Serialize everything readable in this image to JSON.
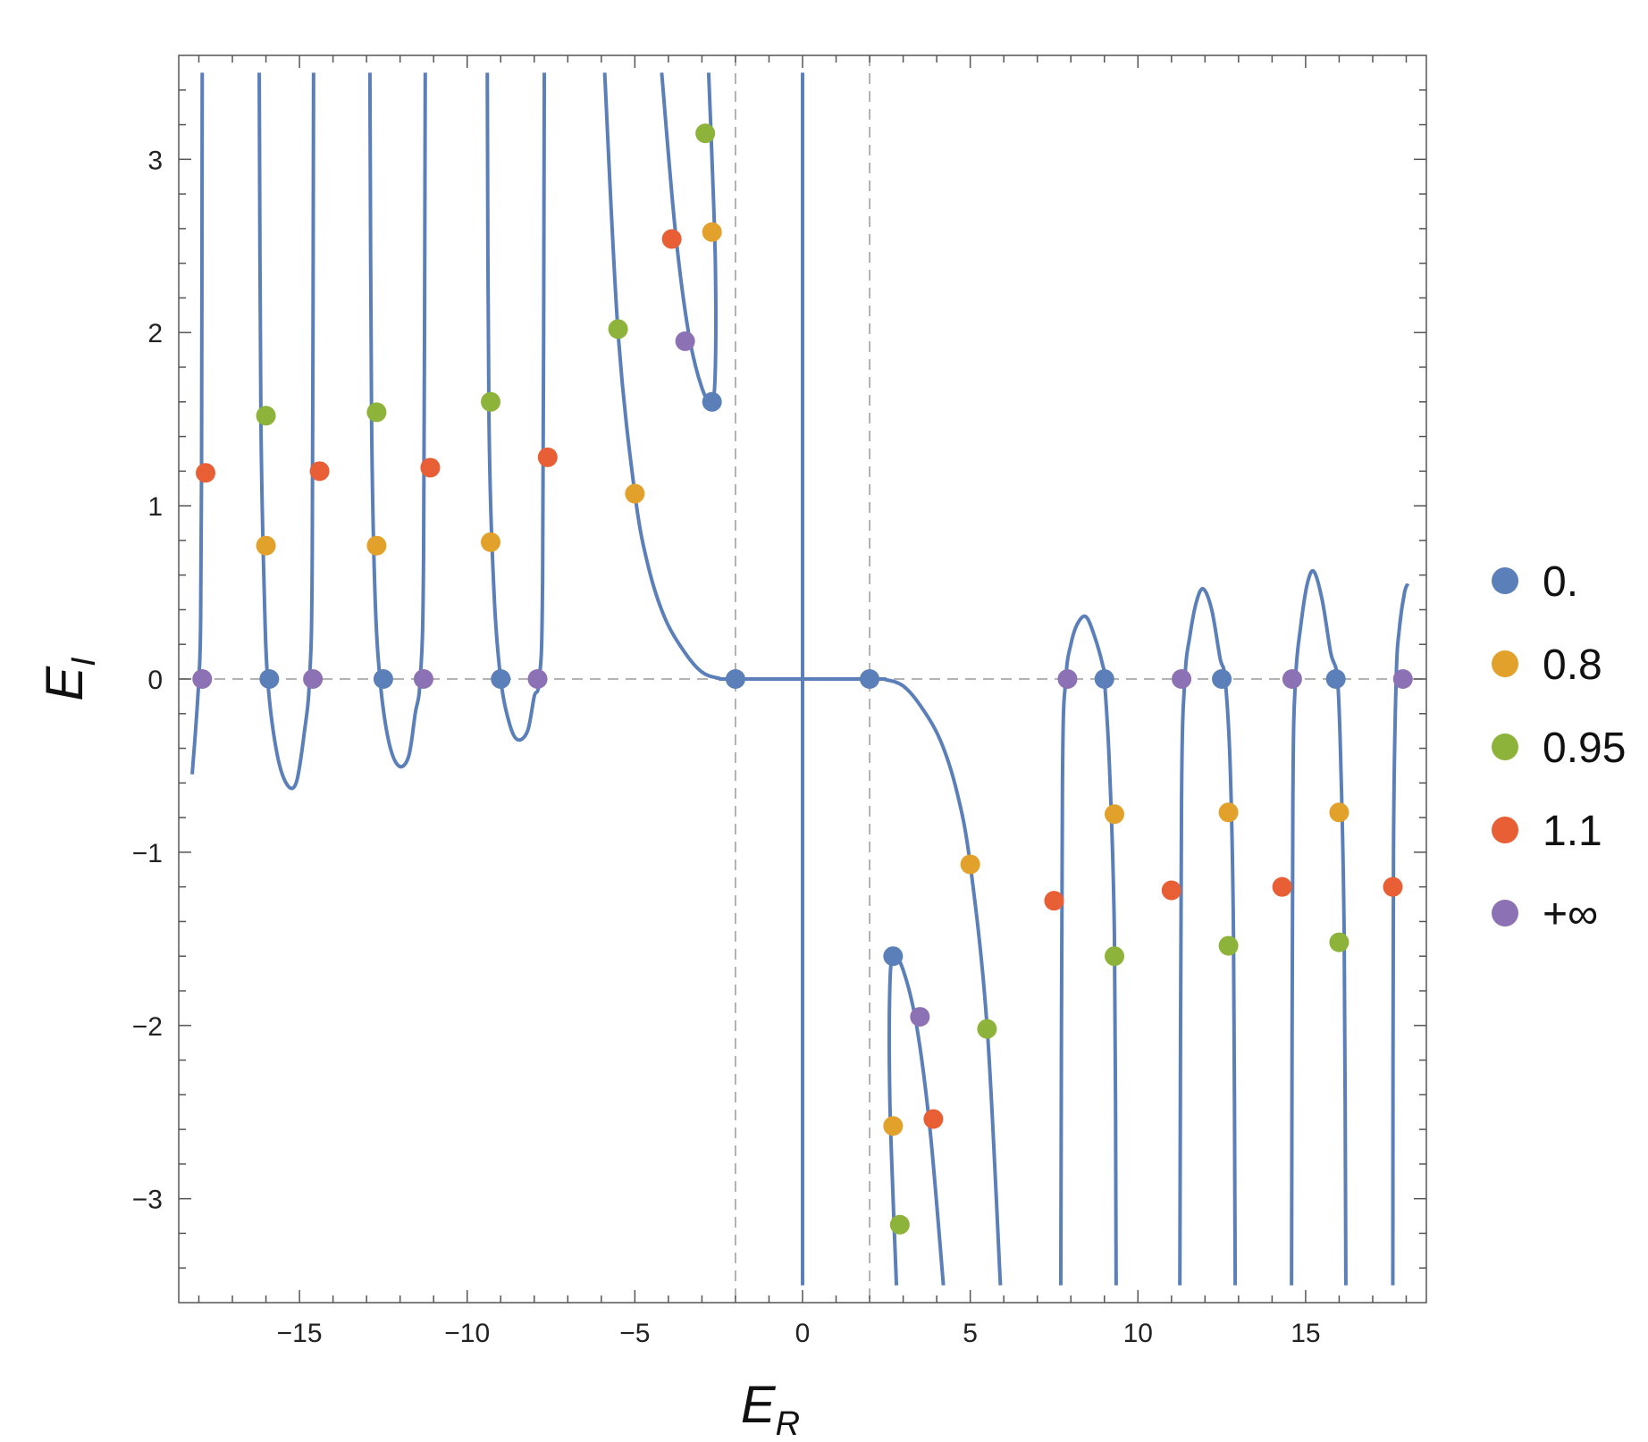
{
  "chart_data": {
    "type": "scatter",
    "xlabel": {
      "main": "E",
      "sub": "R"
    },
    "ylabel": {
      "main": "E",
      "sub": "I"
    },
    "xlim": [
      -18.6,
      18.6
    ],
    "ylim": [
      -3.6,
      3.6
    ],
    "xticks": [
      -15,
      -10,
      -5,
      0,
      5,
      10,
      15
    ],
    "xtick_labels": [
      "−15",
      "−10",
      "−5",
      "0",
      "5",
      "10",
      "15"
    ],
    "yticks": [
      -3,
      -2,
      -1,
      0,
      1,
      2,
      3
    ],
    "ytick_labels": [
      "−3",
      "−2",
      "−1",
      "0",
      "1",
      "2",
      "3"
    ],
    "reference_lines": {
      "vertical": [
        -2,
        2
      ],
      "horizontal": [
        0
      ],
      "style": "dashed"
    },
    "curve_color": "#5B7FB8",
    "curves": [
      [
        [
          -17.9,
          3.5
        ],
        [
          -17.92,
          1.2
        ],
        [
          -17.95,
          0.3
        ],
        [
          -18.0,
          0
        ],
        [
          -18.1,
          -0.3
        ],
        [
          -18.2,
          -0.55
        ]
      ],
      [
        [
          -16.2,
          3.5
        ],
        [
          -16.15,
          1.5
        ],
        [
          -16.05,
          0.5
        ],
        [
          -15.95,
          0
        ],
        [
          -15.7,
          -0.4
        ],
        [
          -15.4,
          -0.6
        ],
        [
          -15.1,
          -0.6
        ],
        [
          -14.85,
          -0.3
        ],
        [
          -14.7,
          0
        ],
        [
          -14.62,
          0.7
        ],
        [
          -14.58,
          3.5
        ]
      ],
      [
        [
          -12.9,
          3.5
        ],
        [
          -12.85,
          1.5
        ],
        [
          -12.75,
          0.5
        ],
        [
          -12.6,
          0
        ],
        [
          -12.35,
          -0.35
        ],
        [
          -12.05,
          -0.5
        ],
        [
          -11.75,
          -0.45
        ],
        [
          -11.55,
          -0.2
        ],
        [
          -11.4,
          0
        ],
        [
          -11.3,
          0.7
        ],
        [
          -11.25,
          3.5
        ]
      ],
      [
        [
          -9.4,
          3.5
        ],
        [
          -9.35,
          1.5
        ],
        [
          -9.2,
          0.5
        ],
        [
          -9.0,
          0
        ],
        [
          -8.75,
          -0.25
        ],
        [
          -8.5,
          -0.35
        ],
        [
          -8.2,
          -0.3
        ],
        [
          -8.0,
          -0.1
        ],
        [
          -7.85,
          0
        ],
        [
          -7.75,
          0.6
        ],
        [
          -7.7,
          3.5
        ]
      ],
      [
        [
          -5.9,
          3.5
        ],
        [
          -5.5,
          2.0
        ],
        [
          -5.0,
          1.07
        ],
        [
          -4.6,
          0.65
        ],
        [
          -4.1,
          0.35
        ],
        [
          -3.5,
          0.15
        ],
        [
          -3.0,
          0.04
        ],
        [
          -2.5,
          0.005
        ],
        [
          -2.0,
          0
        ],
        [
          2.0,
          0
        ],
        [
          2.5,
          -0.005
        ],
        [
          3.0,
          -0.04
        ],
        [
          3.5,
          -0.15
        ],
        [
          4.1,
          -0.35
        ],
        [
          4.6,
          -0.65
        ],
        [
          5.0,
          -1.07
        ],
        [
          5.5,
          -2.0
        ],
        [
          5.9,
          -3.5
        ]
      ],
      [
        [
          -4.2,
          3.5
        ],
        [
          -3.8,
          2.6
        ],
        [
          -3.4,
          2.0
        ],
        [
          -3.0,
          1.68
        ],
        [
          -2.7,
          1.6
        ],
        [
          -2.6,
          1.8
        ],
        [
          -2.6,
          2.4
        ],
        [
          -2.7,
          3.0
        ],
        [
          -2.8,
          3.5
        ]
      ],
      [
        [
          4.2,
          -3.5
        ],
        [
          3.8,
          -2.6
        ],
        [
          3.4,
          -2.0
        ],
        [
          3.0,
          -1.68
        ],
        [
          2.7,
          -1.6
        ],
        [
          2.6,
          -1.8
        ],
        [
          2.6,
          -2.4
        ],
        [
          2.7,
          -3.0
        ],
        [
          2.8,
          -3.5
        ]
      ],
      [
        [
          0,
          3.5
        ],
        [
          0,
          -3.5
        ]
      ],
      [
        [
          7.7,
          -3.5
        ],
        [
          7.75,
          -0.6
        ],
        [
          7.85,
          0
        ],
        [
          8.0,
          0.2
        ],
        [
          8.2,
          0.32
        ],
        [
          8.45,
          0.36
        ],
        [
          8.7,
          0.25
        ],
        [
          8.95,
          0.08
        ],
        [
          9.0,
          0
        ],
        [
          9.15,
          -0.5
        ],
        [
          9.3,
          -1.5
        ],
        [
          9.35,
          -3.5
        ]
      ],
      [
        [
          11.25,
          -3.5
        ],
        [
          11.3,
          -0.7
        ],
        [
          11.4,
          0
        ],
        [
          11.55,
          0.25
        ],
        [
          11.75,
          0.45
        ],
        [
          11.95,
          0.52
        ],
        [
          12.2,
          0.4
        ],
        [
          12.45,
          0.12
        ],
        [
          12.6,
          0
        ],
        [
          12.75,
          -0.5
        ],
        [
          12.85,
          -1.5
        ],
        [
          12.9,
          -3.5
        ]
      ],
      [
        [
          14.58,
          -3.5
        ],
        [
          14.62,
          -0.7
        ],
        [
          14.7,
          0
        ],
        [
          14.85,
          0.3
        ],
        [
          15.05,
          0.55
        ],
        [
          15.25,
          0.62
        ],
        [
          15.5,
          0.45
        ],
        [
          15.75,
          0.15
        ],
        [
          15.95,
          0
        ],
        [
          16.05,
          -0.5
        ],
        [
          16.15,
          -1.5
        ],
        [
          16.2,
          -3.5
        ]
      ],
      [
        [
          17.6,
          -3.5
        ],
        [
          17.62,
          -1.0
        ],
        [
          17.7,
          0
        ],
        [
          17.8,
          0.3
        ],
        [
          17.95,
          0.5
        ],
        [
          18.05,
          0.55
        ]
      ]
    ],
    "series": [
      {
        "name": "0.",
        "color": "#5B7FB8",
        "points": [
          [
            -15.9,
            0
          ],
          [
            -12.5,
            0
          ],
          [
            -9.0,
            0
          ],
          [
            -2.0,
            0
          ],
          [
            2.0,
            0
          ],
          [
            9.0,
            0
          ],
          [
            12.5,
            0
          ],
          [
            15.9,
            0
          ],
          [
            -2.7,
            1.6
          ],
          [
            2.7,
            -1.6
          ]
        ]
      },
      {
        "name": "0.8",
        "color": "#E2A12A",
        "points": [
          [
            -16.0,
            0.77
          ],
          [
            -12.7,
            0.77
          ],
          [
            -9.3,
            0.79
          ],
          [
            -5.0,
            1.07
          ],
          [
            -2.7,
            2.58
          ],
          [
            5.0,
            -1.07
          ],
          [
            9.3,
            -0.78
          ],
          [
            12.7,
            -0.77
          ],
          [
            16.0,
            -0.77
          ],
          [
            2.7,
            -2.58
          ]
        ]
      },
      {
        "name": "0.95",
        "color": "#8DB33A",
        "points": [
          [
            -16.0,
            1.52
          ],
          [
            -12.7,
            1.54
          ],
          [
            -9.3,
            1.6
          ],
          [
            -5.5,
            2.02
          ],
          [
            -2.9,
            3.15
          ],
          [
            5.5,
            -2.02
          ],
          [
            9.3,
            -1.6
          ],
          [
            12.7,
            -1.54
          ],
          [
            16.0,
            -1.52
          ],
          [
            2.9,
            -3.15
          ]
        ]
      },
      {
        "name": "1.1",
        "color": "#E85E35",
        "points": [
          [
            -17.8,
            1.19
          ],
          [
            -14.4,
            1.2
          ],
          [
            -11.1,
            1.22
          ],
          [
            -7.6,
            1.28
          ],
          [
            -3.9,
            2.54
          ],
          [
            3.9,
            -2.54
          ],
          [
            7.5,
            -1.28
          ],
          [
            11.0,
            -1.22
          ],
          [
            14.3,
            -1.2
          ],
          [
            17.6,
            -1.2
          ]
        ]
      },
      {
        "name": "+∞",
        "color": "#8C72B5",
        "points": [
          [
            -17.9,
            0
          ],
          [
            -14.6,
            0
          ],
          [
            -11.3,
            0
          ],
          [
            -7.9,
            0
          ],
          [
            -3.5,
            1.95
          ],
          [
            3.5,
            -1.95
          ],
          [
            7.9,
            0
          ],
          [
            11.3,
            0
          ],
          [
            14.6,
            0
          ],
          [
            17.9,
            0
          ]
        ]
      }
    ]
  }
}
